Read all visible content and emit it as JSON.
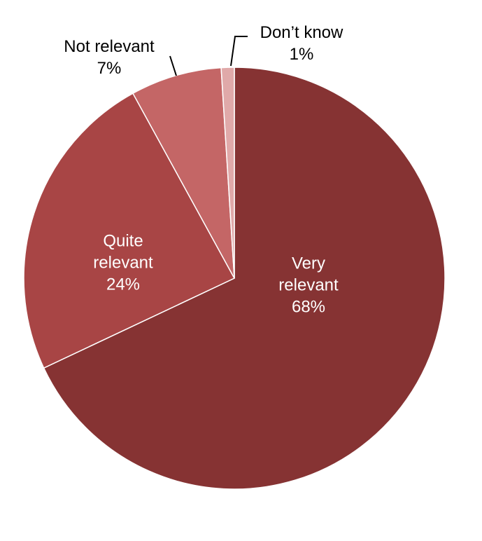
{
  "chart_data": {
    "type": "pie",
    "categories": [
      "Very relevant",
      "Quite relevant",
      "Not relevant",
      "Don’t know"
    ],
    "values": [
      68,
      24,
      7,
      1
    ],
    "value_labels": [
      "68%",
      "24%",
      "7%",
      "1%"
    ],
    "colors": [
      "#863333",
      "#a84545",
      "#c46666",
      "#e0a9a9"
    ]
  }
}
